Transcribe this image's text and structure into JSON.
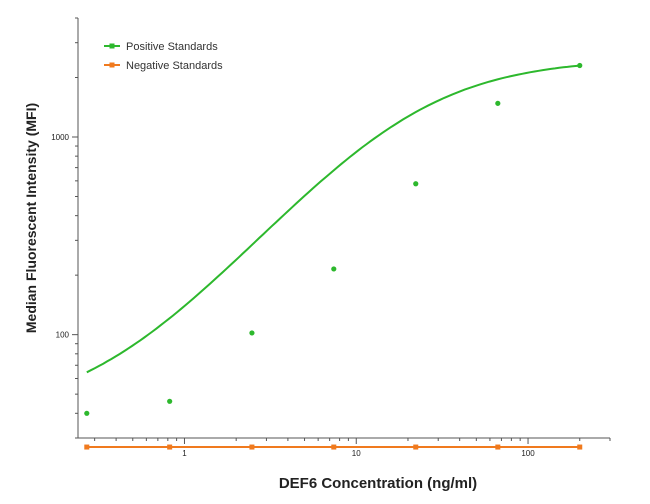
{
  "chart_data": {
    "type": "scatter",
    "xlabel": "DEF6 Concentration (ng/ml)",
    "ylabel": "Median  Fluorescent Intensity  (MFI)",
    "x_scale": "log",
    "y_scale": "log",
    "xlim": [
      0.24,
      300
    ],
    "ylim": [
      30,
      4000
    ],
    "x_ticks": [
      {
        "value": 1,
        "label": "1"
      },
      {
        "value": 10,
        "label": "10"
      },
      {
        "value": 100,
        "label": "100"
      }
    ],
    "y_ticks": [
      {
        "value": 100,
        "label": "100"
      },
      {
        "value": 1000,
        "label": "1000"
      }
    ],
    "legend_position": "top-left",
    "series": [
      {
        "name": "Positive Standards",
        "color": "#2db82d",
        "x": [
          0.27,
          0.82,
          2.47,
          7.4,
          22.2,
          66.7,
          200
        ],
        "y": [
          40,
          46,
          102,
          215,
          580,
          1480,
          2300
        ],
        "fit_curve": true
      },
      {
        "name": "Negative Standards",
        "color": "#f07a1e",
        "x": [
          0.27,
          0.82,
          2.47,
          7.4,
          22.2,
          66.7,
          200
        ],
        "y": [
          27,
          27,
          27,
          27,
          27,
          27,
          27
        ],
        "fit_curve": false
      }
    ]
  }
}
